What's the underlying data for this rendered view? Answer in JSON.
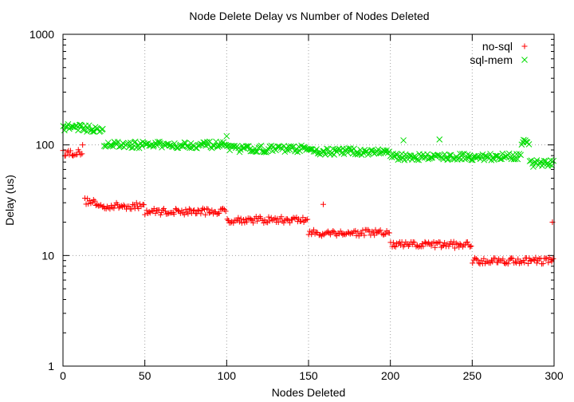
{
  "chart_data": {
    "type": "scatter",
    "title": "Node Delete Delay vs Number of Nodes Deleted",
    "xlabel": "Nodes Deleted",
    "ylabel": "Delay (us)",
    "xlim": [
      0,
      300
    ],
    "ylim": [
      1,
      1000
    ],
    "yscale": "log",
    "grid": true,
    "legend_position": "top-right",
    "x_ticks": [
      0,
      50,
      100,
      150,
      200,
      250,
      300
    ],
    "y_ticks": [
      1,
      10,
      100,
      1000
    ],
    "series": [
      {
        "name": "no-sql",
        "marker": "+",
        "color": "#ff0000",
        "summary": [
          {
            "x_range": [
              0,
              12
            ],
            "y": 85
          },
          {
            "x_range": [
              13,
              20
            ],
            "y": 31
          },
          {
            "x_range": [
              20,
              50
            ],
            "y": 28
          },
          {
            "x_range": [
              50,
              100
            ],
            "y": 25
          },
          {
            "x_range": [
              100,
              150
            ],
            "y": 21
          },
          {
            "x_range": [
              150,
              200
            ],
            "y": 16
          },
          {
            "x_range": [
              200,
              250
            ],
            "y": 12.5
          },
          {
            "x_range": [
              250,
              300
            ],
            "y": 9
          }
        ],
        "outliers": [
          {
            "x": 12,
            "y": 100
          },
          {
            "x": 159,
            "y": 29
          },
          {
            "x": 299,
            "y": 20
          }
        ]
      },
      {
        "name": "sql-mem",
        "marker": "x",
        "color": "#00dd00",
        "summary": [
          {
            "x_range": [
              0,
              12
            ],
            "y": 145
          },
          {
            "x_range": [
              12,
              25
            ],
            "y": 140
          },
          {
            "x_range": [
              25,
              100
            ],
            "y": 100
          },
          {
            "x_range": [
              100,
              150
            ],
            "y": 92
          },
          {
            "x_range": [
              150,
              200
            ],
            "y": 87
          },
          {
            "x_range": [
              200,
              280
            ],
            "y": 78
          },
          {
            "x_range": [
              280,
              285
            ],
            "y": 105
          },
          {
            "x_range": [
              285,
              300
            ],
            "y": 68
          }
        ],
        "outliers": [
          {
            "x": 100,
            "y": 120
          },
          {
            "x": 230,
            "y": 112
          },
          {
            "x": 208,
            "y": 110
          }
        ]
      }
    ]
  }
}
